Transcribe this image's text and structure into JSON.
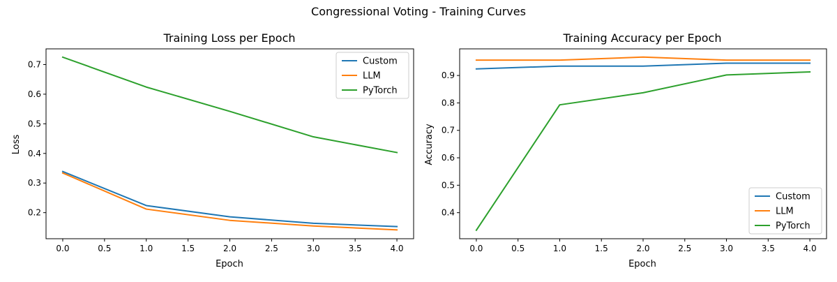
{
  "figure": {
    "title": "Congressional Voting - Training Curves"
  },
  "chart_data": [
    {
      "type": "line",
      "title": "Training Loss per Epoch",
      "xlabel": "Epoch",
      "ylabel": "Loss",
      "x": [
        0,
        1,
        2,
        3,
        4
      ],
      "xlim": [
        -0.2,
        4.2
      ],
      "ylim": [
        0.112,
        0.753
      ],
      "xticks": [
        "0.0",
        "0.5",
        "1.0",
        "1.5",
        "2.0",
        "2.5",
        "3.0",
        "3.5",
        "4.0"
      ],
      "yticks": [
        "0.2",
        "0.3",
        "0.4",
        "0.5",
        "0.6",
        "0.7"
      ],
      "grid": false,
      "legend_position": "top-right",
      "series": [
        {
          "name": "Custom",
          "color": "#1f77b4",
          "values": [
            0.339,
            0.224,
            0.186,
            0.164,
            0.153
          ]
        },
        {
          "name": "LLM",
          "color": "#ff7f0e",
          "values": [
            0.334,
            0.212,
            0.174,
            0.155,
            0.142
          ]
        },
        {
          "name": "PyTorch",
          "color": "#2ca02c",
          "values": [
            0.725,
            0.624,
            0.542,
            0.456,
            0.403
          ]
        }
      ]
    },
    {
      "type": "line",
      "title": "Training Accuracy per Epoch",
      "xlabel": "Epoch",
      "ylabel": "Accuracy",
      "x": [
        0,
        1,
        2,
        3,
        4
      ],
      "xlim": [
        -0.2,
        4.2
      ],
      "ylim": [
        0.305,
        0.997
      ],
      "xticks": [
        "0.0",
        "0.5",
        "1.0",
        "1.5",
        "2.0",
        "2.5",
        "3.0",
        "3.5",
        "4.0"
      ],
      "yticks": [
        "0.4",
        "0.5",
        "0.6",
        "0.7",
        "0.8",
        "0.9"
      ],
      "grid": false,
      "legend_position": "bottom-right",
      "series": [
        {
          "name": "Custom",
          "color": "#1f77b4",
          "values": [
            0.924,
            0.934,
            0.934,
            0.945,
            0.945
          ]
        },
        {
          "name": "LLM",
          "color": "#ff7f0e",
          "values": [
            0.956,
            0.956,
            0.967,
            0.956,
            0.956
          ]
        },
        {
          "name": "PyTorch",
          "color": "#2ca02c",
          "values": [
            0.336,
            0.793,
            0.837,
            0.902,
            0.913
          ]
        }
      ]
    }
  ]
}
